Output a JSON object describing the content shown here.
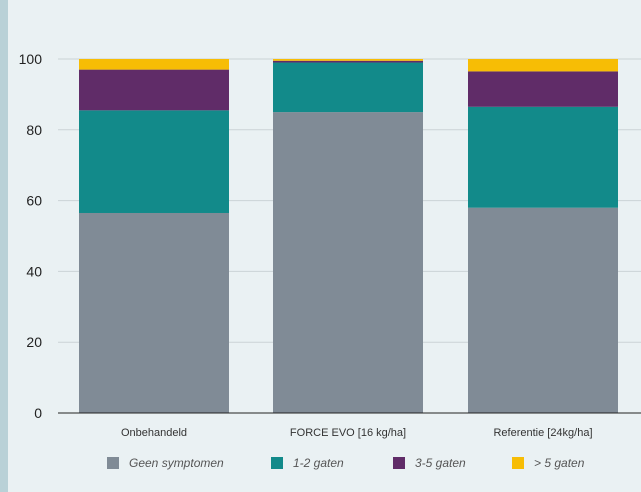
{
  "chart_data": {
    "type": "bar",
    "stacked": true,
    "categories": [
      "Onbehandeld",
      "FORCE EVO [16 kg/ha]",
      "Referentie [24kg/ha]"
    ],
    "series": [
      {
        "name": "Geen symptomen",
        "color": "#808b96",
        "values": [
          56.5,
          85.0,
          58.0
        ]
      },
      {
        "name": "1-2 gaten",
        "color": "#128a8a",
        "values": [
          29.0,
          14.0,
          28.5
        ]
      },
      {
        "name": "3-5 gaten",
        "color": "#602c68",
        "values": [
          11.5,
          0.5,
          10.0
        ]
      },
      {
        "name": "> 5 gaten",
        "color": "#f7bd05",
        "values": [
          3.0,
          0.5,
          3.5
        ]
      }
    ],
    "y_ticks": [
      "0",
      "20",
      "40",
      "60",
      "80",
      "100"
    ],
    "ylim": [
      0,
      100
    ],
    "grid": true,
    "legend_position": "bottom"
  }
}
